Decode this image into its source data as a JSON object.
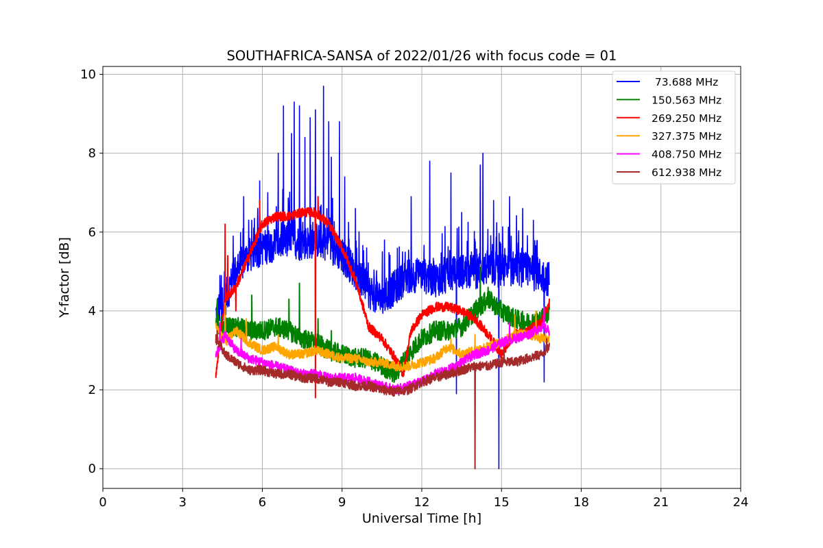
{
  "chart_data": {
    "type": "line",
    "title": "SOUTHAFRICA-SANSA of 2022/01/26 with focus code = 01",
    "xlabel": "Universal Time [h]",
    "ylabel": "Y-factor [dB]",
    "xlim": [
      0,
      24
    ],
    "ylim": [
      -0.5,
      10.2
    ],
    "xticks": [
      0,
      3,
      6,
      9,
      12,
      15,
      18,
      21,
      24
    ],
    "yticks": [
      0,
      2,
      4,
      6,
      8,
      10
    ],
    "xtick_labels": [
      "0",
      "3",
      "6",
      "9",
      "12",
      "15",
      "18",
      "21",
      "24"
    ],
    "ytick_labels": [
      "0",
      "2",
      "4",
      "6",
      "8",
      "10"
    ],
    "grid": true,
    "legend_position": "top-right",
    "series": [
      {
        "name": " 73.688 MHz",
        "color": "#0000ff",
        "x": [
          4.25,
          4.6,
          5.0,
          5.5,
          6.0,
          6.5,
          7.0,
          7.5,
          8.0,
          8.5,
          9.0,
          9.5,
          10.0,
          10.5,
          11.0,
          11.5,
          12.0,
          12.5,
          13.0,
          13.5,
          14.0,
          14.5,
          15.0,
          15.5,
          16.0,
          16.5,
          16.8
        ],
        "y": [
          3.9,
          4.3,
          5.0,
          5.4,
          5.6,
          5.7,
          5.8,
          5.7,
          5.8,
          5.7,
          5.4,
          5.0,
          4.5,
          4.3,
          4.6,
          4.9,
          4.9,
          4.8,
          4.9,
          5.0,
          5.0,
          5.1,
          5.0,
          5.1,
          5.0,
          4.9,
          4.8
        ],
        "noise_amp": 0.45,
        "spikes": [
          [
            4.4,
            4.9
          ],
          [
            4.9,
            5.9
          ],
          [
            5.3,
            6.9
          ],
          [
            5.6,
            6.3
          ],
          [
            5.9,
            7.3
          ],
          [
            6.2,
            7.0
          ],
          [
            6.6,
            8.0
          ],
          [
            6.8,
            9.2
          ],
          [
            7.1,
            8.5
          ],
          [
            7.2,
            9.3
          ],
          [
            7.4,
            9.2
          ],
          [
            7.6,
            8.4
          ],
          [
            7.8,
            8.9
          ],
          [
            8.0,
            9.1
          ],
          [
            8.3,
            9.7
          ],
          [
            8.5,
            8.8
          ],
          [
            8.6,
            7.9
          ],
          [
            8.9,
            8.8
          ],
          [
            9.1,
            7.4
          ],
          [
            9.5,
            6.6
          ],
          [
            10.6,
            5.8
          ],
          [
            11.6,
            6.9
          ],
          [
            12.3,
            7.8
          ],
          [
            13.1,
            7.5
          ],
          [
            13.5,
            6.5
          ],
          [
            14.2,
            7.7
          ],
          [
            14.3,
            8.0
          ],
          [
            14.7,
            6.8
          ],
          [
            15.3,
            6.9
          ],
          [
            15.8,
            6.6
          ],
          [
            16.2,
            6.3
          ],
          [
            13.3,
            1.9
          ],
          [
            14.9,
            0.0
          ],
          [
            16.6,
            2.2
          ]
        ]
      },
      {
        "name": "150.563 MHz",
        "color": "#008000",
        "x": [
          4.25,
          4.6,
          5.0,
          5.5,
          6.0,
          6.5,
          7.0,
          7.5,
          8.0,
          8.5,
          9.0,
          9.5,
          10.0,
          10.5,
          11.0,
          11.5,
          12.0,
          12.5,
          13.0,
          13.5,
          14.0,
          14.5,
          15.0,
          15.5,
          16.0,
          16.5,
          16.8
        ],
        "y": [
          3.7,
          3.6,
          3.6,
          3.5,
          3.5,
          3.6,
          3.5,
          3.3,
          3.2,
          3.0,
          2.9,
          2.8,
          2.8,
          2.6,
          2.4,
          2.9,
          3.3,
          3.5,
          3.5,
          3.6,
          4.0,
          4.3,
          4.0,
          3.8,
          3.7,
          3.8,
          4.0
        ],
        "noise_amp": 0.25,
        "spikes": [
          [
            4.3,
            4.3
          ],
          [
            5.6,
            4.4
          ],
          [
            7.0,
            4.3
          ],
          [
            7.4,
            4.7
          ],
          [
            8.1,
            3.8
          ],
          [
            8.6,
            3.5
          ],
          [
            14.2,
            5.1
          ],
          [
            14.5,
            4.6
          ]
        ]
      },
      {
        "name": "269.250 MHz",
        "color": "#ff0000",
        "x": [
          4.25,
          4.6,
          5.0,
          5.5,
          6.0,
          6.5,
          7.0,
          7.5,
          8.0,
          8.5,
          9.0,
          9.5,
          10.0,
          10.5,
          11.0,
          11.3,
          11.6,
          12.0,
          12.5,
          13.0,
          13.5,
          14.0,
          14.5,
          15.0,
          15.5,
          16.0,
          16.5,
          16.8
        ],
        "y": [
          2.4,
          4.3,
          4.6,
          5.4,
          6.2,
          6.4,
          6.4,
          6.5,
          6.5,
          6.2,
          5.6,
          4.8,
          3.6,
          3.3,
          2.8,
          2.4,
          3.5,
          3.9,
          4.1,
          4.1,
          4.0,
          3.8,
          3.4,
          2.9,
          3.4,
          3.5,
          3.7,
          4.2
        ],
        "noise_amp": 0.12,
        "spikes": [
          [
            4.6,
            6.2
          ],
          [
            4.7,
            5.4
          ],
          [
            5.0,
            4.0
          ],
          [
            5.9,
            6.8
          ],
          [
            8.1,
            6.9
          ],
          [
            8.0,
            1.8
          ]
        ]
      },
      {
        "name": "327.375 MHz",
        "color": "#ffa500",
        "x": [
          4.25,
          4.6,
          5.0,
          5.5,
          6.0,
          6.5,
          7.0,
          7.5,
          8.0,
          8.5,
          9.0,
          9.5,
          10.0,
          10.5,
          11.0,
          11.5,
          12.0,
          12.5,
          13.0,
          13.5,
          14.0,
          14.5,
          15.0,
          15.5,
          16.0,
          16.5,
          16.8
        ],
        "y": [
          3.6,
          3.2,
          3.5,
          3.2,
          3.0,
          3.1,
          2.9,
          2.9,
          3.0,
          2.9,
          2.8,
          2.8,
          2.7,
          2.7,
          2.6,
          2.6,
          2.7,
          2.8,
          3.1,
          2.9,
          3.0,
          3.1,
          3.2,
          3.4,
          3.4,
          3.3,
          3.3
        ],
        "noise_amp": 0.12,
        "spikes": [
          [
            4.6,
            4.2
          ],
          [
            5.4,
            3.8
          ],
          [
            6.6,
            3.4
          ],
          [
            13.1,
            3.3
          ],
          [
            14.0,
            3.4
          ],
          [
            15.5,
            3.9
          ],
          [
            16.3,
            4.0
          ]
        ]
      },
      {
        "name": "408.750 MHz",
        "color": "#ff00ff",
        "x": [
          4.25,
          4.6,
          5.0,
          5.5,
          6.0,
          6.5,
          7.0,
          7.5,
          8.0,
          8.5,
          9.0,
          9.5,
          10.0,
          10.5,
          11.0,
          11.5,
          12.0,
          12.5,
          13.0,
          13.5,
          14.0,
          14.5,
          15.0,
          15.5,
          16.0,
          16.5,
          16.8
        ],
        "y": [
          2.9,
          3.4,
          3.0,
          2.8,
          2.7,
          2.6,
          2.5,
          2.4,
          2.4,
          2.3,
          2.3,
          2.3,
          2.2,
          2.1,
          2.0,
          2.1,
          2.2,
          2.4,
          2.5,
          2.7,
          2.9,
          3.0,
          3.2,
          3.3,
          3.4,
          3.6,
          3.5
        ],
        "noise_amp": 0.12,
        "spikes": [
          [
            4.4,
            3.7
          ],
          [
            5.2,
            3.3
          ],
          [
            15.3,
            3.7
          ],
          [
            16.6,
            4.1
          ]
        ]
      },
      {
        "name": "612.938 MHz",
        "color": "#a52a2a",
        "x": [
          4.25,
          4.6,
          5.0,
          5.5,
          6.0,
          6.5,
          7.0,
          7.5,
          8.0,
          8.5,
          9.0,
          9.5,
          10.0,
          10.5,
          11.0,
          11.5,
          12.0,
          12.5,
          13.0,
          13.5,
          14.0,
          14.5,
          15.0,
          15.5,
          16.0,
          16.5,
          16.8
        ],
        "y": [
          3.3,
          2.9,
          2.7,
          2.5,
          2.5,
          2.4,
          2.4,
          2.3,
          2.3,
          2.2,
          2.2,
          2.1,
          2.1,
          2.0,
          1.95,
          2.0,
          2.2,
          2.3,
          2.4,
          2.5,
          2.6,
          2.6,
          2.7,
          2.7,
          2.8,
          2.9,
          3.1
        ],
        "noise_amp": 0.12,
        "spikes": [
          [
            4.3,
            3.5
          ],
          [
            14.0,
            0.0
          ],
          [
            15.1,
            3.0
          ],
          [
            16.7,
            3.3
          ]
        ]
      }
    ]
  }
}
